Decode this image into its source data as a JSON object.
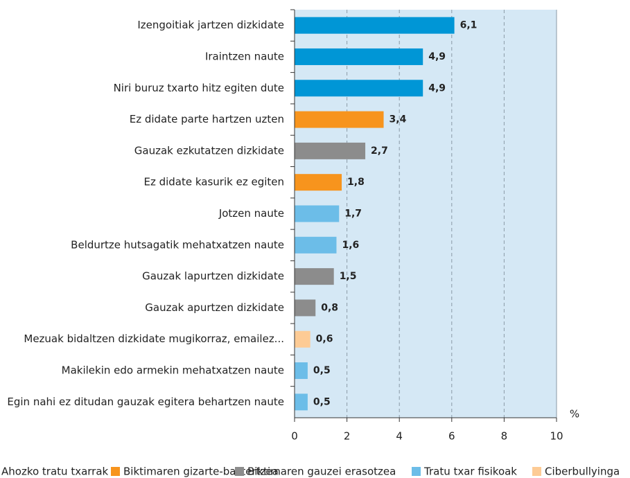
{
  "chart_data": {
    "type": "bar",
    "orientation": "horizontal",
    "categories": [
      "Izengoitiak jartzen dizkidate",
      "Iraintzen naute",
      "Niri buruz txarto hitz egiten dute",
      "Ez didate parte hartzen uzten",
      "Gauzak ezkutatzen dizkidate",
      "Ez didate kasurik ez egiten",
      "Jotzen naute",
      "Beldurtze hutsagatik mehatxatzen naute",
      "Gauzak lapurtzen dizkidate",
      "Gauzak apurtzen dizkidate",
      "Mezuak bidaltzen dizkidate mugikorraz, emailez...",
      "Makilekin edo armekin mehatxatzen naute",
      "Egin nahi ez ditudan gauzak egitera behartzen naute"
    ],
    "series": [
      {
        "name": "Ahozko tratu txarrak",
        "color": "#0096d6",
        "values": [
          6.1,
          4.9,
          4.9,
          null,
          null,
          null,
          null,
          null,
          null,
          null,
          null,
          null,
          null
        ],
        "value_labels": [
          "6,1",
          "4,9",
          "4,9",
          null,
          null,
          null,
          null,
          null,
          null,
          null,
          null,
          null,
          null
        ]
      },
      {
        "name": "Biktimaren gizarte-baztertzea",
        "color": "#f7941d",
        "values": [
          null,
          null,
          null,
          3.4,
          null,
          1.8,
          null,
          null,
          null,
          null,
          null,
          null,
          null
        ],
        "value_labels": [
          null,
          null,
          null,
          "3,4",
          null,
          "1,8",
          null,
          null,
          null,
          null,
          null,
          null,
          null
        ]
      },
      {
        "name": "Biktimaren gauzei erasotzea",
        "color": "#8c8c8c",
        "values": [
          null,
          null,
          null,
          null,
          2.7,
          null,
          null,
          null,
          1.5,
          0.8,
          null,
          null,
          null
        ],
        "value_labels": [
          null,
          null,
          null,
          null,
          "2,7",
          null,
          null,
          null,
          "1,5",
          "0,8",
          null,
          null,
          null
        ]
      },
      {
        "name": "Tratu txar fisikoak",
        "color": "#6cbde8",
        "values": [
          null,
          null,
          null,
          null,
          null,
          null,
          1.7,
          1.6,
          null,
          null,
          null,
          0.5,
          0.5
        ],
        "value_labels": [
          null,
          null,
          null,
          null,
          null,
          null,
          "1,7",
          "1,6",
          null,
          null,
          null,
          "0,5",
          "0,5"
        ]
      },
      {
        "name": "Ciberbullyinga",
        "color": "#fdcb95",
        "values": [
          null,
          null,
          null,
          null,
          null,
          null,
          null,
          null,
          null,
          null,
          0.6,
          null,
          null
        ],
        "value_labels": [
          null,
          null,
          null,
          null,
          null,
          null,
          null,
          null,
          null,
          null,
          "0,6",
          null,
          null
        ]
      }
    ],
    "xlabel": "%",
    "xlim": [
      0,
      10
    ],
    "xticks": [
      0,
      2,
      4,
      6,
      8,
      10
    ],
    "grid": true,
    "legend": "bottom"
  }
}
